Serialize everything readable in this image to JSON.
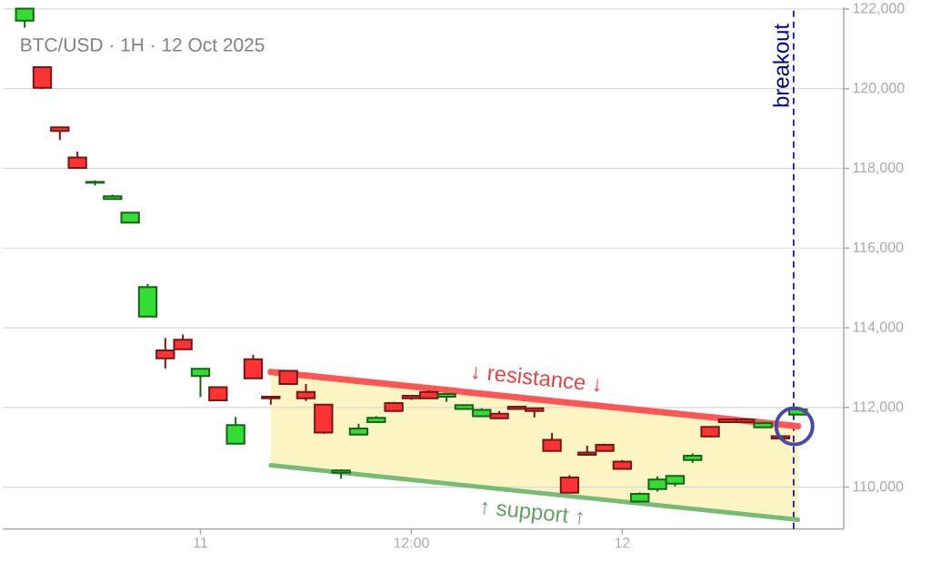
{
  "chart_data": {
    "type": "candlestick",
    "title": "BTC/USD · 1H · 12 Oct 2025",
    "xlim": [
      "2025-10-10T12:45",
      "2025-10-12T12:36"
    ],
    "xticks": [
      {
        "value": "2025-10-11T00:00",
        "label": "11"
      },
      {
        "value": "2025-10-11T12:00",
        "label": "12:00"
      },
      {
        "value": "2025-10-12T00:00",
        "label": "12"
      }
    ],
    "ylim": [
      108950,
      122050
    ],
    "yticks": [
      {
        "value": 110000,
        "label": "110,000"
      },
      {
        "value": 112000,
        "label": "112,000"
      },
      {
        "value": 114000,
        "label": "114,000"
      },
      {
        "value": 116000,
        "label": "116,000"
      },
      {
        "value": 118000,
        "label": "118,000"
      },
      {
        "value": 120000,
        "label": "120,000"
      },
      {
        "value": 122000,
        "label": "122,000"
      }
    ],
    "grid": "y",
    "ref_lines": [
      {
        "axis": "x",
        "value": "2025-10-12T09:45",
        "label": "breakout",
        "color": "#000080",
        "line_style": "dashed"
      }
    ],
    "series": [
      {
        "type": "candlestick",
        "x": [
          "2025-10-10T14:00",
          "2025-10-10T15:00",
          "2025-10-10T16:00",
          "2025-10-10T17:00",
          "2025-10-10T18:00",
          "2025-10-10T19:00",
          "2025-10-10T20:00",
          "2025-10-10T21:00",
          "2025-10-10T22:00",
          "2025-10-10T23:00",
          "2025-10-11T00:00",
          "2025-10-11T01:00",
          "2025-10-11T02:00",
          "2025-10-11T03:00",
          "2025-10-11T04:00",
          "2025-10-11T05:00",
          "2025-10-11T06:00",
          "2025-10-11T07:00",
          "2025-10-11T08:00",
          "2025-10-11T09:00",
          "2025-10-11T10:00",
          "2025-10-11T11:00",
          "2025-10-11T12:00",
          "2025-10-11T13:00",
          "2025-10-11T14:00",
          "2025-10-11T15:00",
          "2025-10-11T16:00",
          "2025-10-11T17:00",
          "2025-10-11T18:00",
          "2025-10-11T19:00",
          "2025-10-11T20:00",
          "2025-10-11T21:00",
          "2025-10-11T22:00",
          "2025-10-11T23:00",
          "2025-10-12T00:00",
          "2025-10-12T01:00",
          "2025-10-12T02:00",
          "2025-10-12T03:00",
          "2025-10-12T04:00",
          "2025-10-12T05:00",
          "2025-10-12T06:00",
          "2025-10-12T07:00",
          "2025-10-12T08:00",
          "2025-10-12T09:00",
          "2025-10-12T10:00"
        ],
        "ohlc": [
          [
            121710,
            122010,
            121530,
            122010
          ],
          [
            120540,
            120560,
            119990,
            120020
          ],
          [
            119030,
            119030,
            118710,
            118940
          ],
          [
            118270,
            118420,
            117990,
            118010
          ],
          [
            117640,
            117700,
            117570,
            117660
          ],
          [
            117230,
            117340,
            117220,
            117300
          ],
          [
            116640,
            116890,
            116640,
            116890
          ],
          [
            114280,
            115100,
            114280,
            115020
          ],
          [
            113430,
            113740,
            112980,
            113230
          ],
          [
            113700,
            113830,
            113450,
            113460
          ],
          [
            112790,
            112970,
            112260,
            112970
          ],
          [
            112510,
            112510,
            112160,
            112180
          ],
          [
            111090,
            111760,
            111090,
            111560
          ],
          [
            113210,
            113320,
            112730,
            112730
          ],
          [
            112270,
            112280,
            112070,
            112230
          ],
          [
            112920,
            112930,
            112570,
            112590
          ],
          [
            112390,
            112590,
            112160,
            112230
          ],
          [
            112070,
            112070,
            111340,
            111370
          ],
          [
            110360,
            110450,
            110210,
            110420
          ],
          [
            111320,
            111590,
            111310,
            111470
          ],
          [
            111630,
            111780,
            111620,
            111740
          ],
          [
            112110,
            112140,
            111900,
            111910
          ],
          [
            112290,
            112300,
            112190,
            112230
          ],
          [
            112390,
            112430,
            112220,
            112230
          ],
          [
            112270,
            112340,
            112140,
            112340
          ],
          [
            111960,
            112060,
            111950,
            112060
          ],
          [
            111780,
            111980,
            111770,
            111940
          ],
          [
            111840,
            111910,
            111720,
            111730
          ],
          [
            112020,
            112030,
            111950,
            111960
          ],
          [
            111980,
            111990,
            111750,
            111910
          ],
          [
            111190,
            111360,
            110900,
            110910
          ],
          [
            110240,
            110300,
            109860,
            109860
          ],
          [
            110870,
            111040,
            110810,
            110810
          ],
          [
            111060,
            111090,
            110900,
            110910
          ],
          [
            110640,
            110680,
            110450,
            110460
          ],
          [
            109640,
            109870,
            109630,
            109830
          ],
          [
            109950,
            110270,
            109890,
            110190
          ],
          [
            110090,
            110290,
            110020,
            110280
          ],
          [
            110680,
            110850,
            110610,
            110790
          ],
          [
            111510,
            111520,
            111250,
            111270
          ],
          [
            111700,
            111720,
            111630,
            111630
          ],
          [
            111700,
            111710,
            111630,
            111630
          ],
          [
            111500,
            111640,
            111500,
            111610
          ],
          [
            111280,
            111290,
            111220,
            111220
          ],
          [
            111820,
            111960,
            111820,
            111950
          ]
        ],
        "colors": [
          "#33dd33",
          "#ff3333",
          "#ff3333",
          "#ff3333",
          "#33dd33",
          "#33dd33",
          "#33dd33",
          "#33dd33",
          "#ff3333",
          "#ff3333",
          "#33dd33",
          "#ff3333",
          "#33dd33",
          "#ff3333",
          "#ff3333",
          "#ff3333",
          "#ff3333",
          "#ff3333",
          "#33dd33",
          "#33dd33",
          "#33dd33",
          "#ff3333",
          "#ff3333",
          "#ff3333",
          "#33dd33",
          "#33dd33",
          "#33dd33",
          "#ff3333",
          "#ff3333",
          "#ff3333",
          "#ff3333",
          "#ff3333",
          "#ff3333",
          "#ff3333",
          "#ff3333",
          "#33dd33",
          "#33dd33",
          "#33dd33",
          "#33dd33",
          "#ff3333",
          "#ff3333",
          "#ff3333",
          "#33dd33",
          "#ff3333",
          "#33dd33"
        ]
      },
      {
        "type": "line",
        "name": "↓ resistance ↓",
        "color": "#ff5555",
        "x": [
          "2025-10-11T04:00",
          "2025-10-12T10:00"
        ],
        "values": [
          112890,
          111530
        ]
      },
      {
        "type": "line",
        "name": "↑ support ↑",
        "color": "#77bb77",
        "x": [
          "2025-10-11T04:00",
          "2025-10-12T10:00"
        ],
        "values": [
          110550,
          109180
        ]
      }
    ]
  }
}
